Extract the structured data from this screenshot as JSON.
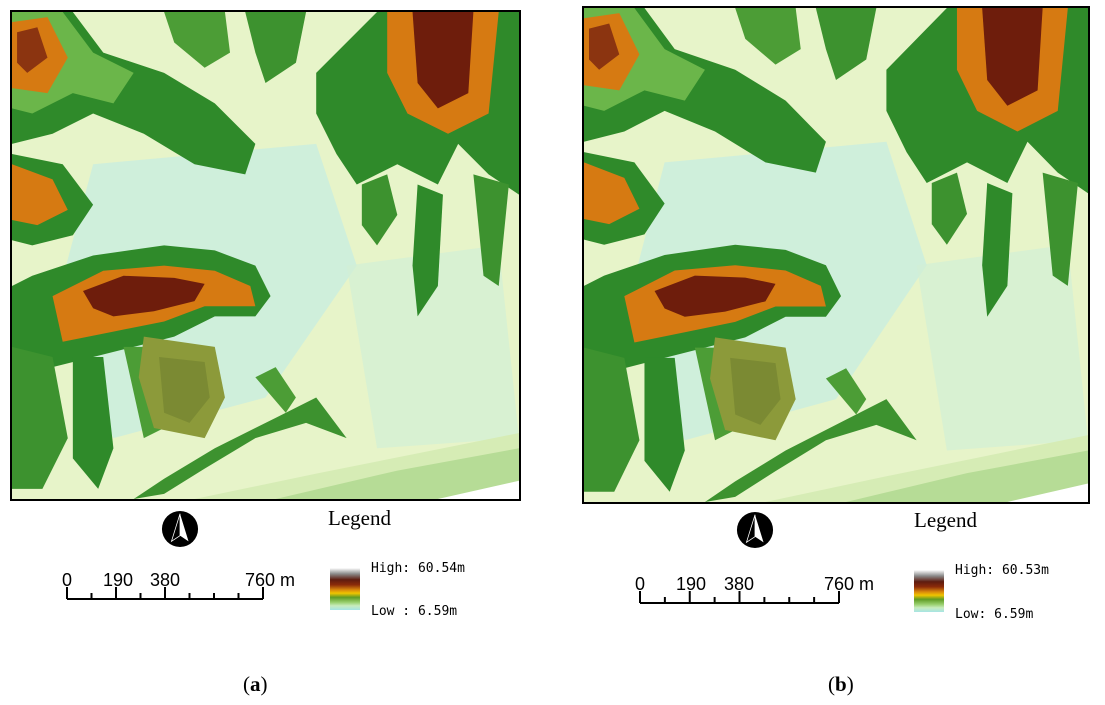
{
  "panels": [
    {
      "id": "a",
      "legend_title": "Legend",
      "scale": {
        "ticks": [
          "0",
          "190",
          "380",
          "760 m"
        ]
      },
      "legend": {
        "high": "High: 60.54m",
        "low": "Low : 6.59m"
      },
      "caption": {
        "open": "(",
        "letter": "a",
        "close": ")"
      }
    },
    {
      "id": "b",
      "legend_title": "Legend",
      "scale": {
        "ticks": [
          "0",
          "190",
          "380",
          "760 m"
        ]
      },
      "legend": {
        "high": "High: 60.53m",
        "low": "Low: 6.59m"
      },
      "caption": {
        "open": "(",
        "letter": "b",
        "close": ")"
      }
    }
  ],
  "colors": {
    "lowland": "#e7f4c9",
    "water_tint": "#c9ede0",
    "green_dark": "#2f8a2a",
    "green_mid": "#6bb64a",
    "olive": "#8c9a3a",
    "orange": "#d67a12",
    "high_brown": "#6e1d0c"
  },
  "icons": {
    "north_arrow": "north-arrow-icon"
  }
}
